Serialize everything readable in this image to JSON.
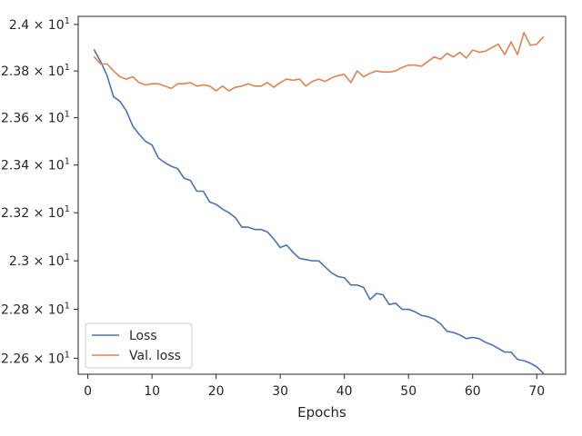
{
  "chart_data": {
    "type": "line",
    "title": "",
    "xlabel": "Epochs",
    "ylabel": "",
    "xlim": [
      -1.5,
      74.5
    ],
    "ylim": [
      22.535,
      24.035
    ],
    "x_ticks": [
      0,
      10,
      20,
      30,
      40,
      50,
      60,
      70
    ],
    "y_ticks": [
      {
        "value": 22.6,
        "mantissa": "2.26",
        "base": "10",
        "exp": "1"
      },
      {
        "value": 22.8,
        "mantissa": "2.28",
        "base": "10",
        "exp": "1"
      },
      {
        "value": 23.0,
        "mantissa": "2.3",
        "base": "10",
        "exp": "1"
      },
      {
        "value": 23.2,
        "mantissa": "2.32",
        "base": "10",
        "exp": "1"
      },
      {
        "value": 23.4,
        "mantissa": "2.34",
        "base": "10",
        "exp": "1"
      },
      {
        "value": 23.6,
        "mantissa": "2.36",
        "base": "10",
        "exp": "1"
      },
      {
        "value": 23.8,
        "mantissa": "2.38",
        "base": "10",
        "exp": "1"
      },
      {
        "value": 24.0,
        "mantissa": "2.4",
        "base": "10",
        "exp": "1"
      }
    ],
    "y_times_sign": "×",
    "y_scale": "log",
    "grid": false,
    "legend_position": "lower-left",
    "x": [
      1,
      2,
      3,
      4,
      5,
      6,
      7,
      8,
      9,
      10,
      11,
      12,
      13,
      14,
      15,
      16,
      17,
      18,
      19,
      20,
      21,
      22,
      23,
      24,
      25,
      26,
      27,
      28,
      29,
      30,
      31,
      32,
      33,
      34,
      35,
      36,
      37,
      38,
      39,
      40,
      41,
      42,
      43,
      44,
      45,
      46,
      47,
      48,
      49,
      50,
      51,
      52,
      53,
      54,
      55,
      56,
      57,
      58,
      59,
      60,
      61,
      62,
      63,
      64,
      65,
      66,
      67,
      68,
      69,
      70,
      71
    ],
    "series": [
      {
        "name": "Loss",
        "color": "#4c72b0",
        "values": [
          23.89,
          23.84,
          23.78,
          23.69,
          23.67,
          23.63,
          23.565,
          23.53,
          23.5,
          23.485,
          23.43,
          23.41,
          23.395,
          23.385,
          23.345,
          23.335,
          23.29,
          23.29,
          23.245,
          23.235,
          23.215,
          23.2,
          23.18,
          23.14,
          23.14,
          23.13,
          23.13,
          23.12,
          23.09,
          23.055,
          23.065,
          23.035,
          23.01,
          23.005,
          23.0,
          23.0,
          22.975,
          22.95,
          22.935,
          22.93,
          22.9,
          22.9,
          22.89,
          22.84,
          22.865,
          22.86,
          22.82,
          22.825,
          22.8,
          22.8,
          22.79,
          22.775,
          22.77,
          22.76,
          22.74,
          22.71,
          22.705,
          22.695,
          22.68,
          22.685,
          22.68,
          22.665,
          22.655,
          22.64,
          22.625,
          22.625,
          22.595,
          22.59,
          22.58,
          22.565,
          22.54
        ]
      },
      {
        "name": "Val. loss",
        "color": "#dd8452",
        "values": [
          23.86,
          23.83,
          23.83,
          23.8,
          23.775,
          23.765,
          23.775,
          23.75,
          23.74,
          23.745,
          23.745,
          23.735,
          23.725,
          23.745,
          23.745,
          23.75,
          23.735,
          23.74,
          23.735,
          23.715,
          23.735,
          23.715,
          23.73,
          23.735,
          23.745,
          23.735,
          23.735,
          23.75,
          23.73,
          23.75,
          23.765,
          23.76,
          23.765,
          23.735,
          23.755,
          23.765,
          23.755,
          23.77,
          23.78,
          23.785,
          23.75,
          23.8,
          23.775,
          23.79,
          23.8,
          23.795,
          23.795,
          23.8,
          23.815,
          23.825,
          23.825,
          23.82,
          23.84,
          23.86,
          23.85,
          23.875,
          23.86,
          23.88,
          23.855,
          23.89,
          23.88,
          23.885,
          23.9,
          23.915,
          23.87,
          23.925,
          23.87,
          23.965,
          23.91,
          23.915,
          23.945
        ]
      }
    ]
  }
}
